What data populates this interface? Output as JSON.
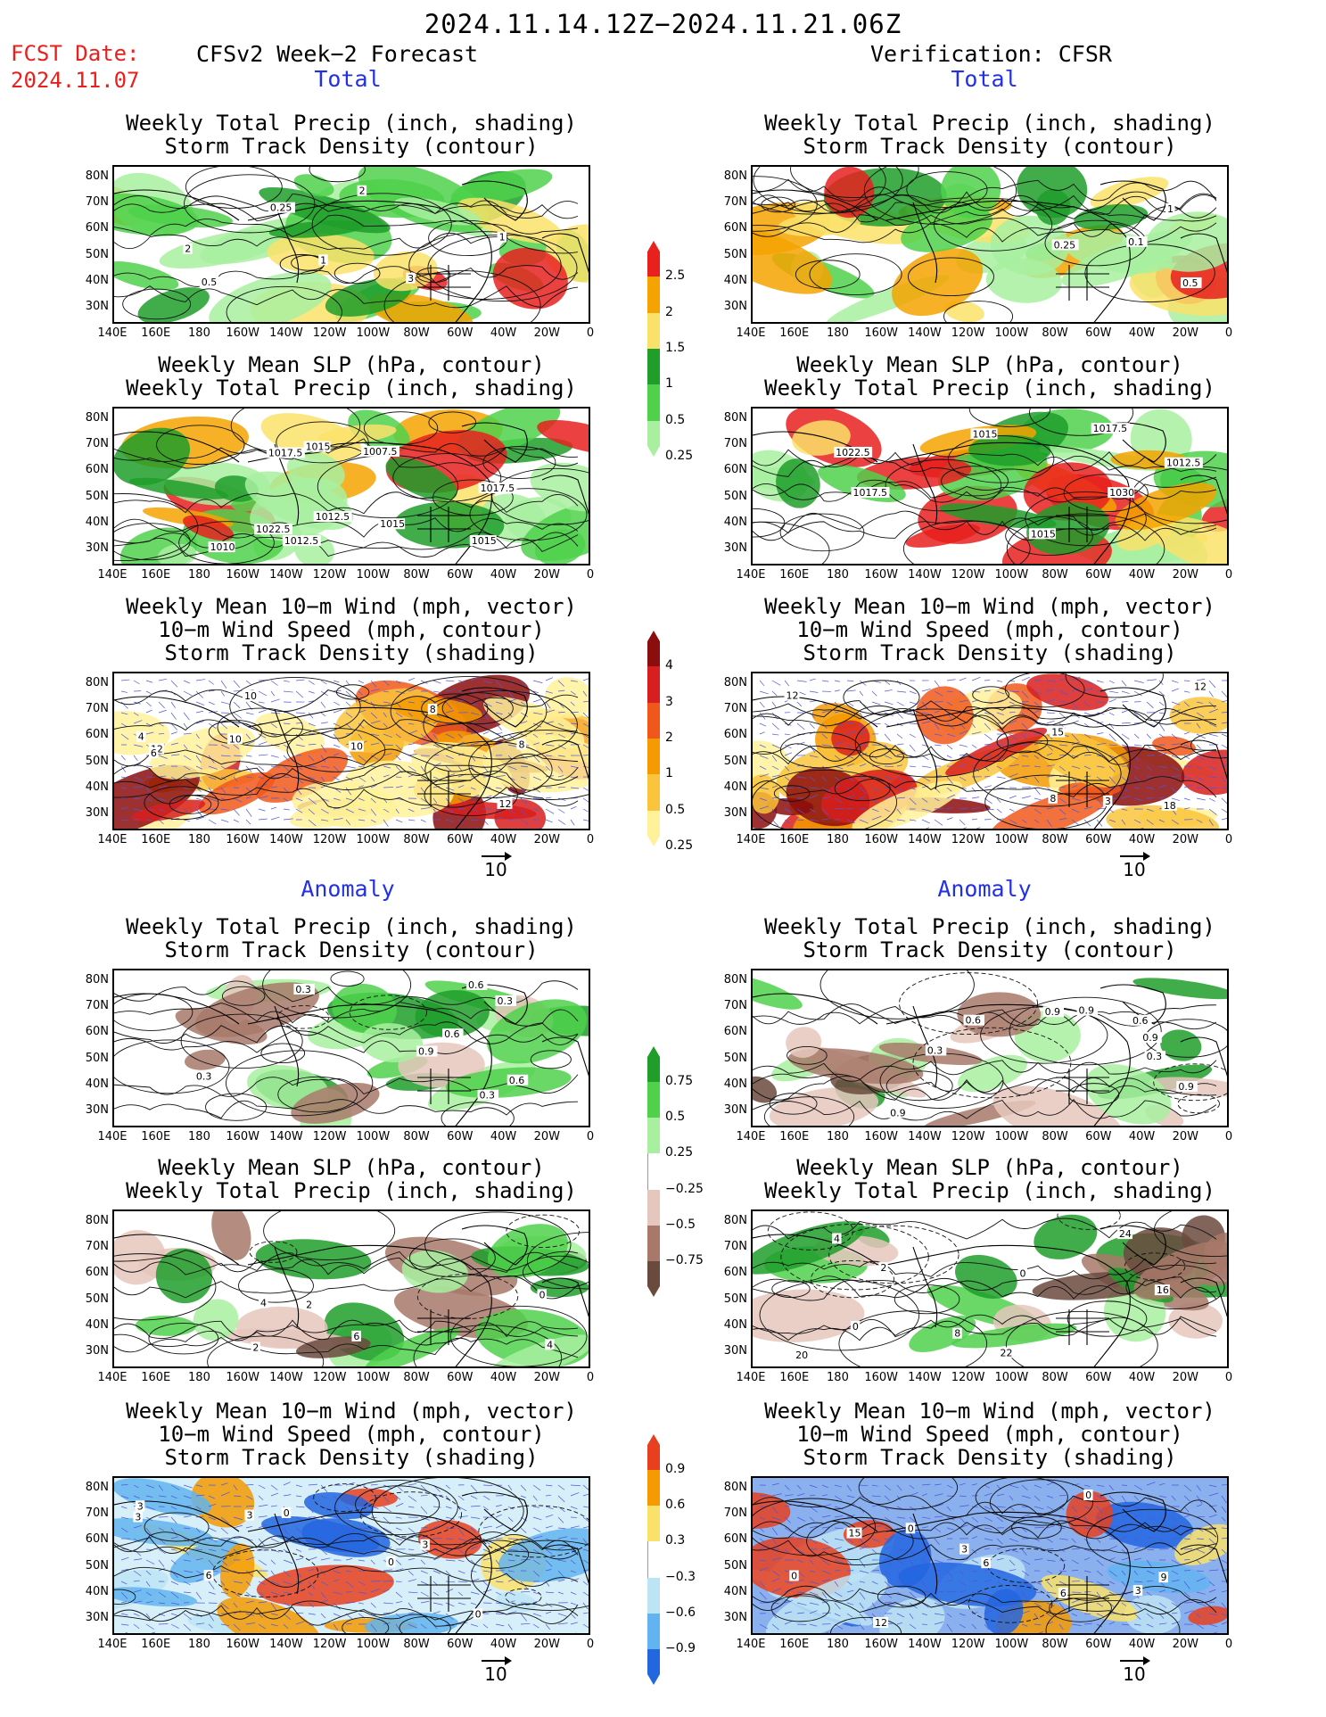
{
  "header": {
    "period": "2024.11.14.12Z−2024.11.21.06Z",
    "fcst_label": "FCST Date:",
    "fcst_date": "2024.11.07",
    "left_title": "CFSv2 Week−2 Forecast",
    "right_title": "Verification: CFSR",
    "total_label": "Total",
    "anomaly_label": "Anomaly"
  },
  "axes": {
    "lat": [
      "80N",
      "70N",
      "60N",
      "50N",
      "40N",
      "30N"
    ],
    "lon": [
      "140E",
      "160E",
      "180",
      "160W",
      "140W",
      "120W",
      "100W",
      "80W",
      "60W",
      "40W",
      "20W",
      "0"
    ]
  },
  "panel_titles": {
    "precip_storm": [
      "Weekly Total Precip (inch, shading)",
      "Storm Track Density (contour)"
    ],
    "slp_precip": [
      "Weekly Mean SLP (hPa, contour)",
      "Weekly Total Precip (inch, shading)"
    ],
    "wind_storm": [
      "Weekly Mean 10−m Wind (mph, vector)",
      "10−m Wind Speed (mph, contour)",
      "Storm Track Density (shading)"
    ]
  },
  "vector_ref": "10",
  "colorbars": {
    "precip_total": {
      "labels": [
        "2.5",
        "2",
        "1.5",
        "1",
        "0.5",
        "0.25"
      ],
      "colors": [
        "#e8201e",
        "#f5a300",
        "#fae26a",
        "#1f9e2a",
        "#4fd14b",
        "#a8f0a0"
      ]
    },
    "storm_total": {
      "labels": [
        "4",
        "3",
        "2",
        "1",
        "0.5",
        "0.25"
      ],
      "colors": [
        "#8c0d0d",
        "#d81e1e",
        "#f0581b",
        "#f59a00",
        "#fac43c",
        "#fff29a"
      ]
    },
    "precip_anom": {
      "labels": [
        "0.75",
        "0.5",
        "0.25",
        "−0.25",
        "−0.5",
        "−0.75"
      ],
      "colors": [
        "#1f9e2a",
        "#4fd14b",
        "#a8f0a0",
        "#ffffff",
        "#e6c7bd",
        "#a8796a",
        "#6b4a3e"
      ]
    },
    "storm_anom": {
      "labels": [
        "0.9",
        "0.6",
        "0.3",
        "−0.3",
        "−0.6",
        "−0.9"
      ],
      "colors": [
        "#e8401e",
        "#f59a00",
        "#fae26a",
        "#ffffff",
        "#bde4f5",
        "#62b4f0",
        "#2266e0"
      ]
    }
  },
  "panels": [
    {
      "id": "fc-precip-storm",
      "titles": "precip_storm",
      "field": "precip",
      "contour_labels": [
        "3",
        "2",
        "1",
        "0.25",
        "0.5",
        "2",
        "1"
      ]
    },
    {
      "id": "vf-precip-storm",
      "titles": "precip_storm",
      "field": "precip",
      "contour_labels": [
        "0.5",
        "0.25",
        "0.1",
        "1"
      ]
    },
    {
      "id": "fc-slp-precip",
      "titles": "slp_precip",
      "field": "precip",
      "contour_labels": [
        "1022.5",
        "1015",
        "1017.5",
        "1007.5",
        "1010",
        "1012.5",
        "1017.5",
        "1012.5",
        "1015",
        "1015"
      ]
    },
    {
      "id": "vf-slp-precip",
      "titles": "slp_precip",
      "field": "precip",
      "contour_labels": [
        "1015",
        "1012.5",
        "1030",
        "1022.5",
        "1017.5",
        "1015",
        "1017.5"
      ]
    },
    {
      "id": "fc-wind-storm",
      "titles": "wind_storm",
      "field": "storm",
      "contour_labels": [
        "10",
        "12",
        "4",
        "8",
        "12",
        "10",
        "10",
        "8",
        "6"
      ]
    },
    {
      "id": "vf-wind-storm",
      "titles": "wind_storm",
      "field": "storm",
      "contour_labels": [
        "3",
        "8",
        "12",
        "15",
        "12",
        "18"
      ]
    },
    {
      "id": "fa-precip-storm",
      "titles": "precip_storm",
      "field": "precip_anom",
      "contour_labels": [
        "0.3",
        "0.6",
        "0.3",
        "0.6",
        "0.3",
        "0.9",
        "0.6",
        "0.3"
      ]
    },
    {
      "id": "va-precip-storm",
      "titles": "precip_storm",
      "field": "precip_anom",
      "contour_labels": [
        "0.9",
        "0.3",
        "0.9",
        "0.6",
        "0.6",
        "0.9",
        "0.9",
        "0.3",
        "0.9"
      ]
    },
    {
      "id": "fa-slp-precip",
      "titles": "slp_precip",
      "field": "precip_anom",
      "contour_labels": [
        "2",
        "4",
        "0",
        "6",
        "2",
        "4"
      ]
    },
    {
      "id": "va-slp-precip",
      "titles": "slp_precip",
      "field": "precip_anom",
      "contour_labels": [
        "0",
        "16",
        "4",
        "2",
        "20",
        "22",
        "24",
        "8",
        "0"
      ]
    },
    {
      "id": "fa-wind-storm",
      "titles": "wind_storm",
      "field": "storm_anom",
      "contour_labels": [
        "6",
        "3",
        "0",
        "3",
        "0",
        "3",
        "0",
        "3"
      ]
    },
    {
      "id": "va-wind-storm",
      "titles": "wind_storm",
      "field": "storm_anom",
      "contour_labels": [
        "3",
        "0",
        "0",
        "9",
        "12",
        "3",
        "6",
        "15",
        "6",
        "0"
      ]
    }
  ]
}
